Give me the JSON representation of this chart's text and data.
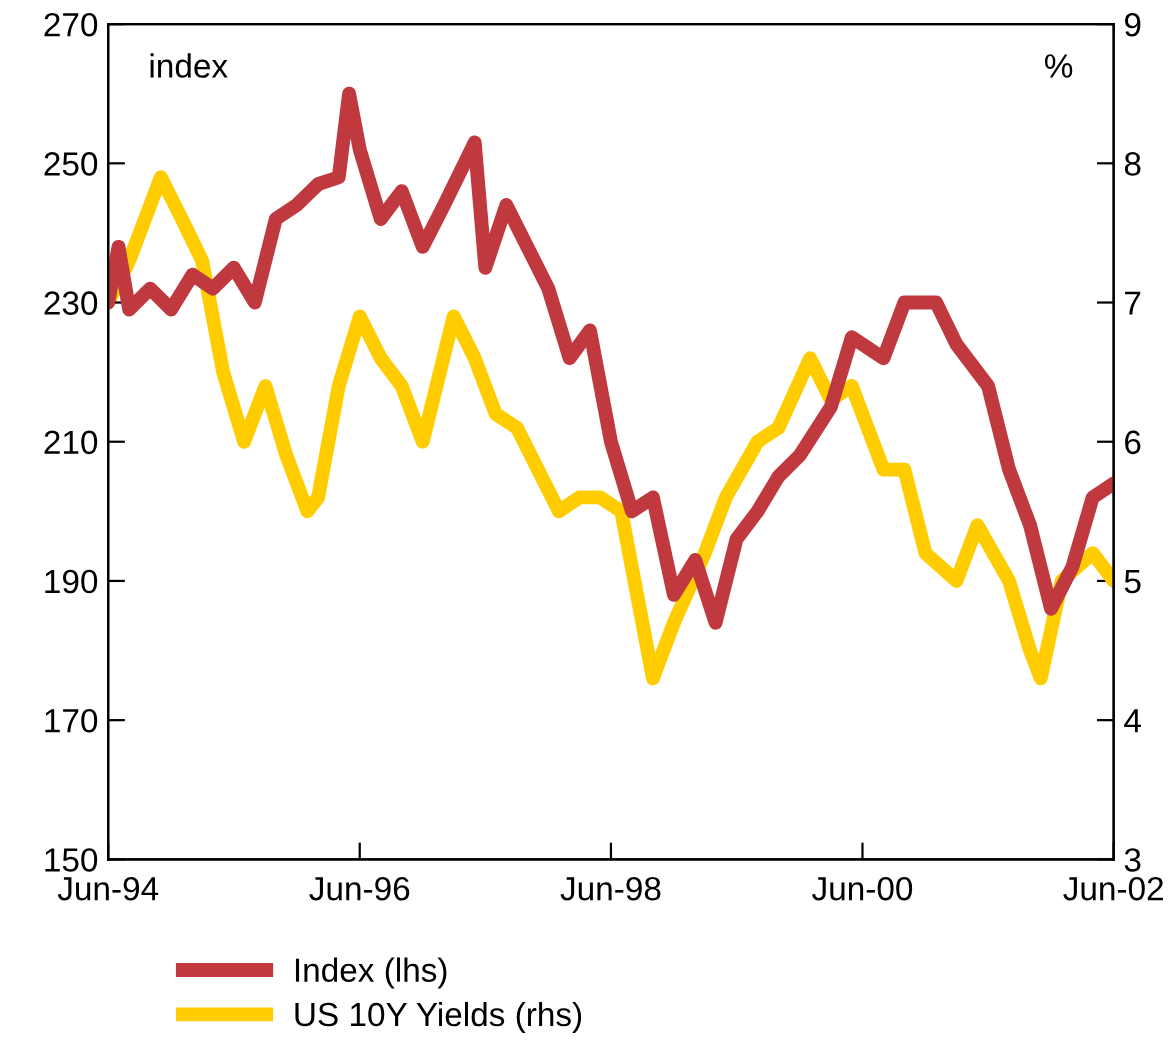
{
  "chart_data": {
    "type": "line",
    "ylabel": "index",
    "y2label": "%",
    "legend": "bottom",
    "grid": false,
    "marker": "none",
    "line_style": "solid",
    "xlim": [
      "1994-06",
      "2002-06"
    ],
    "xticks": [
      {
        "value": "1994-06",
        "label": "Jun-94"
      },
      {
        "value": "1996-06",
        "label": "Jun-96"
      },
      {
        "value": "1998-06",
        "label": "Jun-98"
      },
      {
        "value": "2000-06",
        "label": "Jun-00"
      },
      {
        "value": "2002-06",
        "label": "Jun-02"
      }
    ],
    "ylim": [
      150,
      270
    ],
    "yticks": [
      150,
      170,
      190,
      210,
      230,
      250,
      270
    ],
    "y2lim": [
      3,
      9
    ],
    "y2ticks": [
      3,
      4,
      5,
      6,
      7,
      8,
      9
    ],
    "series": [
      {
        "name": "Index (lhs)",
        "color": "#c0393f",
        "axis": "y",
        "x": [
          "1994-06",
          "1994-07",
          "1994-08",
          "1994-10",
          "1994-12",
          "1995-02",
          "1995-04",
          "1995-06",
          "1995-08",
          "1995-10",
          "1995-12",
          "1996-02",
          "1996-04",
          "1996-05",
          "1996-06",
          "1996-08",
          "1996-10",
          "1996-12",
          "1997-02",
          "1997-05",
          "1997-06",
          "1997-08",
          "1997-10",
          "1997-12",
          "1998-02",
          "1998-04",
          "1998-06",
          "1998-08",
          "1998-10",
          "1998-12",
          "1999-02",
          "1999-04",
          "1999-06",
          "1999-08",
          "1999-10",
          "1999-12",
          "2000-03",
          "2000-05",
          "2000-08",
          "2000-10",
          "2001-01",
          "2001-03",
          "2001-06",
          "2001-08",
          "2001-10",
          "2001-12",
          "2002-02",
          "2002-04",
          "2002-06"
        ],
        "values": [
          230,
          238,
          229,
          232,
          229,
          234,
          232,
          235,
          230,
          242,
          244,
          247,
          248,
          260,
          252,
          242,
          246,
          238,
          244,
          253,
          235,
          244,
          238,
          232,
          222,
          226,
          210,
          200,
          202,
          188,
          193,
          184,
          196,
          200,
          205,
          208,
          215,
          225,
          222,
          230,
          230,
          224,
          218,
          206,
          198,
          186,
          192,
          202,
          204
        ]
      },
      {
        "name": "US 10Y Yields (rhs)",
        "color": "#ffcc00",
        "axis": "y2",
        "x": [
          "1994-06",
          "1994-08",
          "1994-11",
          "1995-01",
          "1995-03",
          "1995-05",
          "1995-07",
          "1995-09",
          "1995-11",
          "1996-01",
          "1996-02",
          "1996-04",
          "1996-06",
          "1996-08",
          "1996-10",
          "1996-12",
          "1997-03",
          "1997-05",
          "1997-07",
          "1997-09",
          "1997-11",
          "1998-01",
          "1998-03",
          "1998-05",
          "1998-07",
          "1998-10",
          "1998-12",
          "1999-03",
          "1999-05",
          "1999-08",
          "1999-10",
          "2000-01",
          "2000-03",
          "2000-05",
          "2000-08",
          "2000-10",
          "2000-12",
          "2001-03",
          "2001-05",
          "2001-08",
          "2001-10",
          "2001-11",
          "2002-01",
          "2002-04",
          "2002-06"
        ],
        "values": [
          7.0,
          7.3,
          7.9,
          7.6,
          7.3,
          6.5,
          6.0,
          6.4,
          5.9,
          5.5,
          5.6,
          6.4,
          6.9,
          6.6,
          6.4,
          6.0,
          6.9,
          6.6,
          6.2,
          6.1,
          5.8,
          5.5,
          5.6,
          5.6,
          5.5,
          4.3,
          4.7,
          5.2,
          5.6,
          6.0,
          6.1,
          6.6,
          6.3,
          6.4,
          5.8,
          5.8,
          5.2,
          5.0,
          5.4,
          5.0,
          4.5,
          4.3,
          5.0,
          5.2,
          5.0
        ]
      }
    ]
  }
}
